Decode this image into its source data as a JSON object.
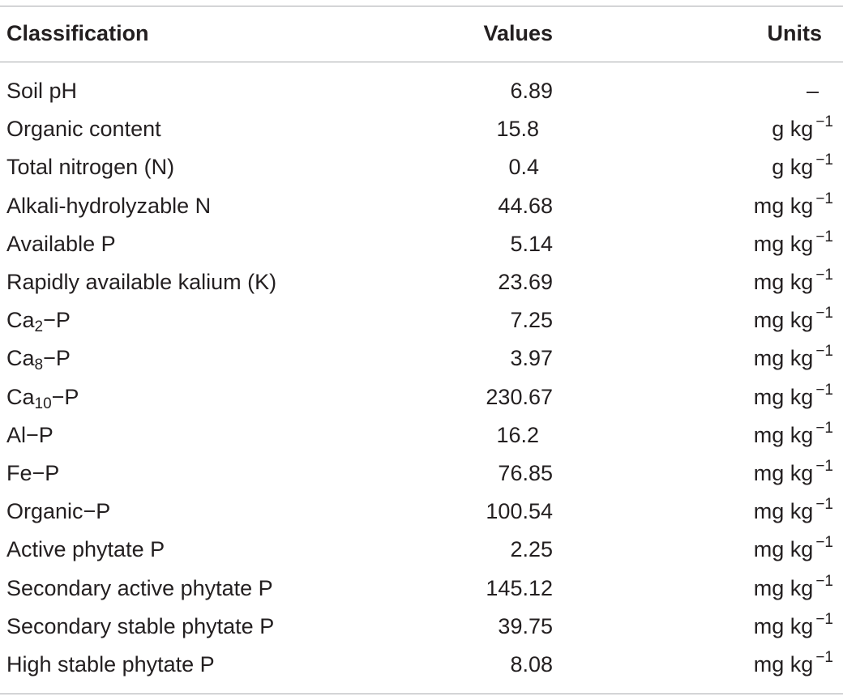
{
  "table": {
    "headers": {
      "classification": "Classification",
      "values": "Values",
      "units": "Units"
    },
    "rows": [
      {
        "classification": "Soil pH",
        "value": "6.89",
        "unit": "–"
      },
      {
        "classification": "Organic content",
        "value": "15.8",
        "unit_base": "g kg",
        "unit_exp": "−1"
      },
      {
        "classification": "Total nitrogen (N)",
        "value": "0.4",
        "unit_base": "g kg",
        "unit_exp": "−1"
      },
      {
        "classification": "Alkali-hydrolyzable N",
        "value": "44.68",
        "unit_base": "mg kg",
        "unit_exp": "−1"
      },
      {
        "classification": "Available P",
        "value": "5.14",
        "unit_base": "mg kg",
        "unit_exp": "−1"
      },
      {
        "classification": "Rapidly available kalium (K)",
        "value": "23.69",
        "unit_base": "mg kg",
        "unit_exp": "−1"
      },
      {
        "cls_pre": "Ca",
        "cls_sub": "2",
        "cls_post": "−P",
        "value": "7.25",
        "unit_base": "mg kg",
        "unit_exp": "−1"
      },
      {
        "cls_pre": "Ca",
        "cls_sub": "8",
        "cls_post": "−P",
        "value": "3.97",
        "unit_base": "mg kg",
        "unit_exp": "−1"
      },
      {
        "cls_pre": "Ca",
        "cls_sub": "10",
        "cls_post": "−P",
        "value": "230.67",
        "unit_base": "mg kg",
        "unit_exp": "−1"
      },
      {
        "classification": "Al−P",
        "value": "16.2",
        "unit_base": "mg kg",
        "unit_exp": "−1"
      },
      {
        "classification": "Fe−P",
        "value": "76.85",
        "unit_base": "mg kg",
        "unit_exp": "−1"
      },
      {
        "classification": "Organic−P",
        "value": "100.54",
        "unit_base": "mg kg",
        "unit_exp": "−1"
      },
      {
        "classification": "Active phytate P",
        "value": "2.25",
        "unit_base": "mg kg",
        "unit_exp": "−1"
      },
      {
        "classification": "Secondary active phytate P",
        "value": "145.12",
        "unit_base": "mg kg",
        "unit_exp": "−1"
      },
      {
        "classification": "Secondary stable phytate P",
        "value": "39.75",
        "unit_base": "mg kg",
        "unit_exp": "−1"
      },
      {
        "classification": "High stable phytate P",
        "value": "8.08",
        "unit_base": "mg kg",
        "unit_exp": "−1"
      }
    ]
  }
}
